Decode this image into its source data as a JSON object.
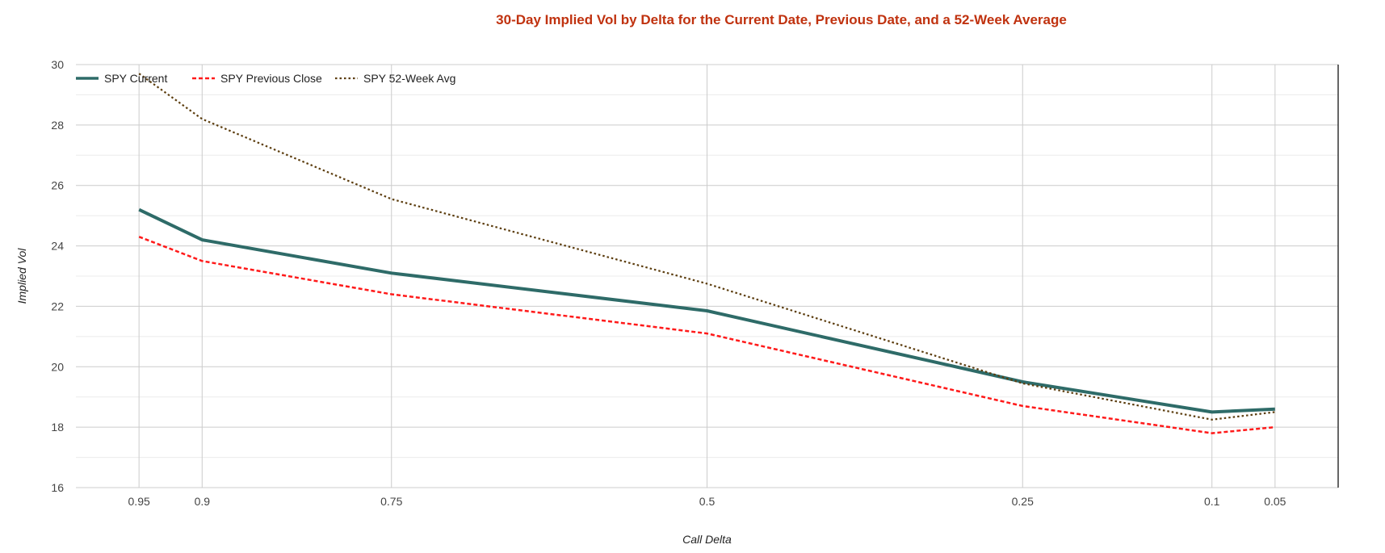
{
  "chart_data": {
    "type": "line",
    "title": "30-Day Implied Vol by Delta for the Current Date, Previous Date, and a 52-Week Average",
    "xlabel": "Call Delta",
    "ylabel": "Implied Vol",
    "x": [
      0.95,
      0.9,
      0.75,
      0.5,
      0.25,
      0.1,
      0.05
    ],
    "x_tick_labels": [
      "0.95",
      "0.9",
      "0.75",
      "0.5",
      "0.25",
      "0.1",
      "0.05"
    ],
    "xlim": [
      1.0,
      0.0
    ],
    "x_reversed": true,
    "ylim": [
      16,
      30
    ],
    "y_ticks": [
      16,
      18,
      20,
      22,
      24,
      26,
      28,
      30
    ],
    "grid": true,
    "legend_position": "top-left",
    "series": [
      {
        "name": "SPY Current",
        "color": "#2e6b68",
        "style": "solid",
        "values": [
          25.2,
          24.2,
          23.1,
          21.85,
          19.5,
          18.5,
          18.6
        ]
      },
      {
        "name": "SPY Previous Close",
        "color": "#ff1a1a",
        "style": "dashed",
        "values": [
          24.3,
          23.5,
          22.4,
          21.1,
          18.7,
          17.8,
          18.0
        ]
      },
      {
        "name": "SPY 52-Week Avg",
        "color": "#5c3d0e",
        "style": "dotted",
        "values": [
          29.7,
          28.2,
          25.55,
          22.75,
          19.45,
          18.25,
          18.5
        ]
      }
    ]
  },
  "colors": {
    "title": "#c0320f",
    "grid_major": "#cccccc",
    "grid_minor": "#ebebeb"
  }
}
